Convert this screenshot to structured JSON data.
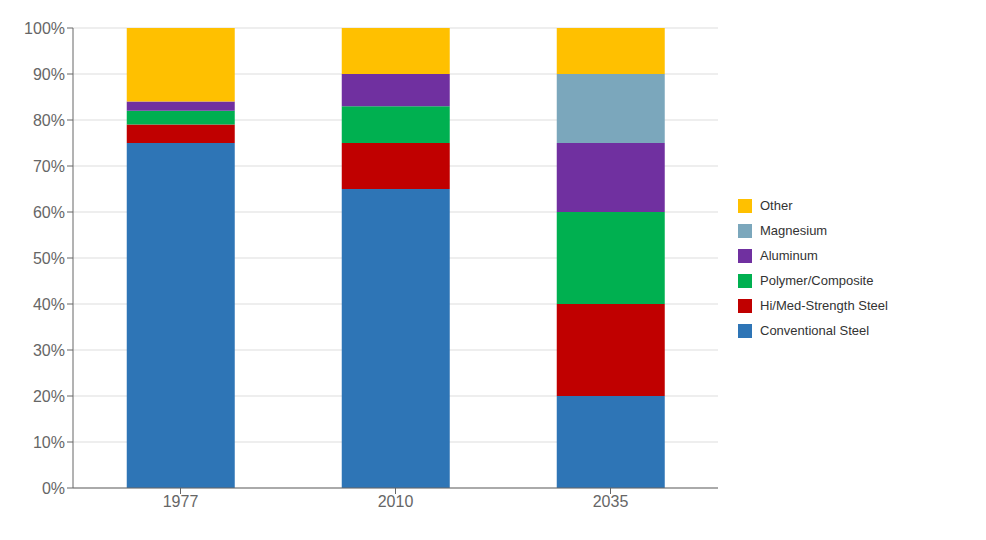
{
  "chart_data": {
    "type": "bar",
    "stacked": true,
    "categories": [
      "1977",
      "2010",
      "2035"
    ],
    "series": [
      {
        "name": "Conventional Steel",
        "color": "#2E75B6",
        "values": [
          75,
          65,
          20
        ]
      },
      {
        "name": "Hi/Med-Strength Steel",
        "color": "#C00000",
        "values": [
          4,
          10,
          20
        ]
      },
      {
        "name": "Polymer/Composite",
        "color": "#00B050",
        "values": [
          3,
          8,
          20
        ]
      },
      {
        "name": "Aluminum",
        "color": "#7030A0",
        "values": [
          2,
          7,
          15
        ]
      },
      {
        "name": "Magnesium",
        "color": "#7BA7BC",
        "values": [
          0,
          0,
          15
        ]
      },
      {
        "name": "Other",
        "color": "#FFC000",
        "values": [
          16,
          10,
          10
        ]
      }
    ],
    "ylim": [
      0,
      100
    ],
    "yticks": [
      {
        "value": 0,
        "label": "0%"
      },
      {
        "value": 10,
        "label": "10%"
      },
      {
        "value": 20,
        "label": "20%"
      },
      {
        "value": 30,
        "label": "30%"
      },
      {
        "value": 40,
        "label": "40%"
      },
      {
        "value": 50,
        "label": "50%"
      },
      {
        "value": 60,
        "label": "60%"
      },
      {
        "value": 70,
        "label": "70%"
      },
      {
        "value": 80,
        "label": "80%"
      },
      {
        "value": 90,
        "label": "90%"
      },
      {
        "value": 100,
        "label": "100%"
      }
    ],
    "grid": true,
    "legend": "right"
  }
}
